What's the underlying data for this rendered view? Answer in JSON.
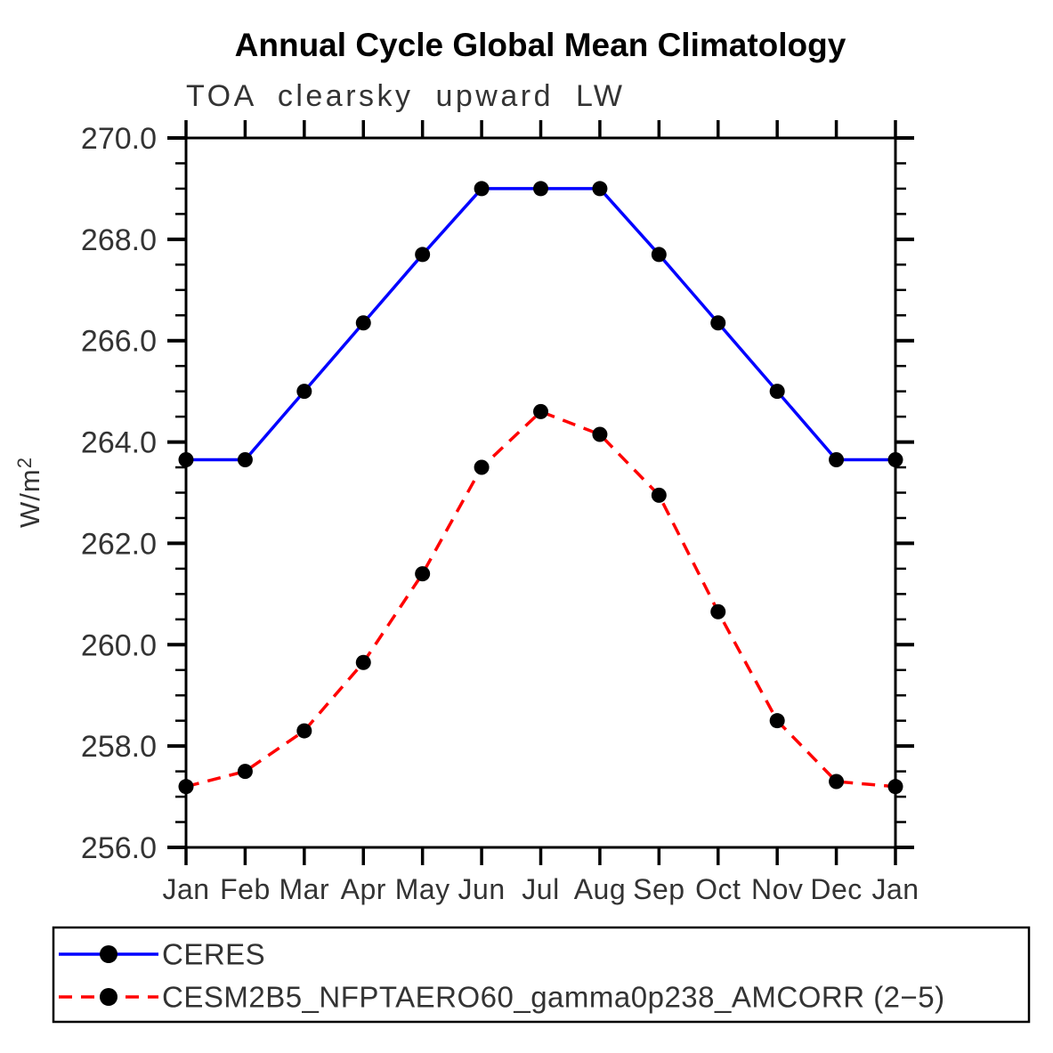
{
  "chart": {
    "title": "Annual Cycle Global Mean Climatology",
    "subtitle": "TOA clearsky upward LW",
    "ylabel_base": "W/m",
    "ylabel_sup": "2"
  },
  "chart_data": {
    "type": "line",
    "title": "Annual Cycle Global Mean Climatology",
    "subtitle": "TOA clearsky upward LW",
    "ylabel": "W/m²",
    "xlabel": "",
    "categories": [
      "Jan",
      "Feb",
      "Mar",
      "Apr",
      "May",
      "Jun",
      "Jul",
      "Aug",
      "Sep",
      "Oct",
      "Nov",
      "Dec",
      "Jan"
    ],
    "series": [
      {
        "name": "CERES",
        "color": "#0000ff",
        "line_style": "solid",
        "marker": "circle",
        "marker_color": "#000000",
        "values": [
          263.65,
          263.65,
          265.0,
          266.35,
          267.7,
          269.0,
          269.0,
          269.0,
          267.7,
          266.35,
          265.0,
          263.65,
          263.65
        ]
      },
      {
        "name": "CESM2B5_NFPTAERO60_gamma0p238_AMCORR (2−5)",
        "color": "#ff0000",
        "line_style": "dashed",
        "marker": "circle",
        "marker_color": "#000000",
        "values": [
          257.2,
          257.5,
          258.3,
          259.65,
          261.4,
          263.5,
          264.6,
          264.15,
          262.95,
          260.65,
          258.5,
          257.3,
          257.2
        ]
      }
    ],
    "ylim": [
      256.0,
      270.0
    ],
    "ytick_interval": 2.0,
    "yminor_interval": 0.5,
    "ytick_labels": [
      "256.0",
      "258.0",
      "260.0",
      "262.0",
      "264.0",
      "266.0",
      "268.0",
      "270.0"
    ],
    "grid": false,
    "legend_position": "bottom"
  }
}
